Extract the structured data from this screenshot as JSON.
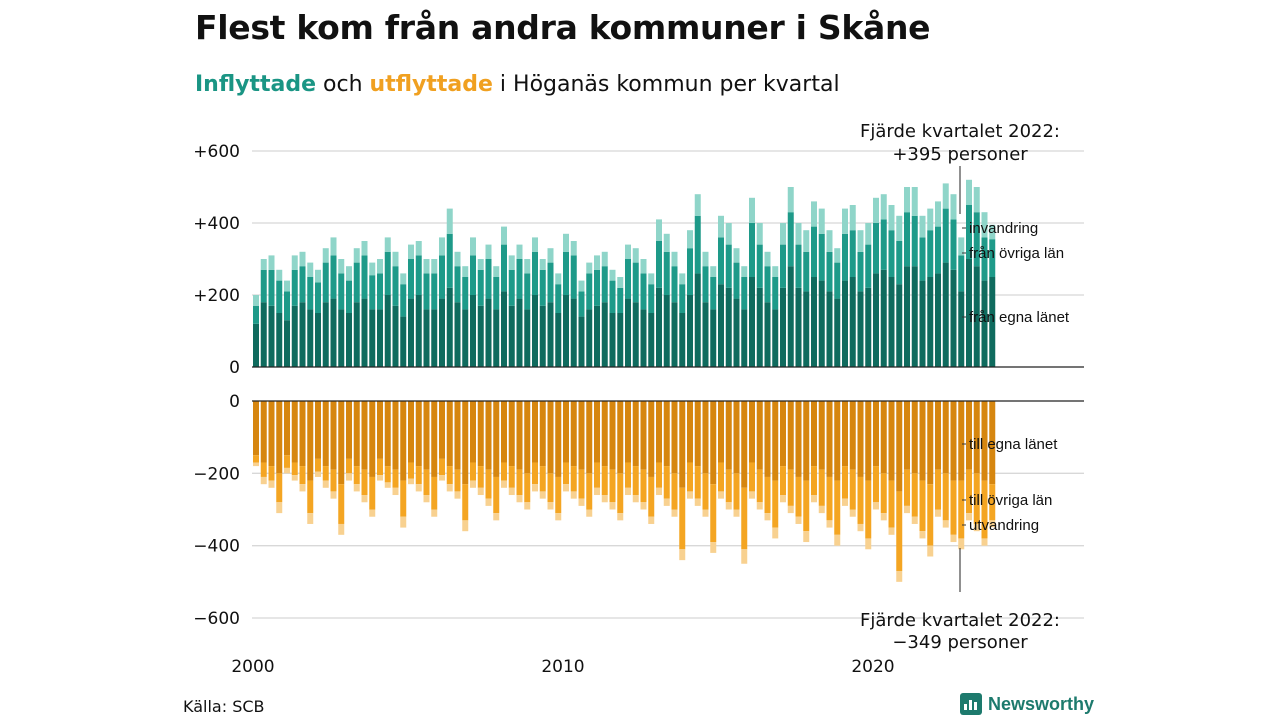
{
  "title": "Flest kom från andra kommuner i Skåne",
  "subtitle": {
    "inflow_word": "Inflyttade",
    "connector": " och ",
    "outflow_word": "utflyttade",
    "rest": " i Höganäs kommun per kvartal"
  },
  "source": "Källa: SCB",
  "brand": "Newsworthy",
  "colors": {
    "in_own": "#0f6b5e",
    "in_other": "#1e9a89",
    "in_imm": "#8fd5c9",
    "out_own": "#d6860f",
    "out_other": "#f4a522",
    "out_emi": "#f8d190",
    "grid": "#d8d8d8",
    "axis": "#222222"
  },
  "chart_data": {
    "type": "bar",
    "stacked": true,
    "x_tick_labels": [
      "2000",
      "2010",
      "2020"
    ],
    "top_panel": {
      "y_ticks": [
        0,
        200,
        400,
        600
      ],
      "y_tick_labels": [
        "0",
        "+200",
        "+400",
        "+600"
      ],
      "ylim": [
        0,
        600
      ],
      "series_labels": [
        "från egna länet",
        "från övriga län",
        "invandring"
      ],
      "annotation": [
        "Fjärde kvartalet 2022:",
        "+395 personer"
      ]
    },
    "bottom_panel": {
      "y_ticks": [
        0,
        -200,
        -400,
        -600
      ],
      "y_tick_labels": [
        "0",
        "−200",
        "−400",
        "−600"
      ],
      "ylim": [
        -600,
        0
      ],
      "series_labels": [
        "till egna länet",
        "till övriga län",
        "utvandring"
      ],
      "annotation": [
        "Fjärde kvartalet 2022:",
        "−349 personer"
      ]
    },
    "quarters_start": "2000 Q1",
    "quarters_end": "2022 Q4",
    "inflow_total": [
      200,
      300,
      310,
      270,
      240,
      310,
      320,
      290,
      270,
      330,
      360,
      300,
      280,
      330,
      350,
      290,
      300,
      360,
      320,
      260,
      340,
      350,
      300,
      300,
      360,
      440,
      320,
      280,
      360,
      300,
      340,
      280,
      390,
      310,
      340,
      300,
      360,
      300,
      330,
      260,
      370,
      350,
      240,
      290,
      310,
      320,
      270,
      250,
      340,
      330,
      300,
      260,
      410,
      370,
      320,
      260,
      380,
      480,
      320,
      280,
      420,
      400,
      330,
      280,
      470,
      400,
      320,
      280,
      400,
      500,
      400,
      380,
      460,
      440,
      380,
      330,
      440,
      450,
      380,
      400,
      470,
      480,
      450,
      420,
      500,
      500,
      420,
      440,
      460,
      510,
      480,
      360,
      520,
      500,
      430,
      395
    ],
    "inflow_own": [
      120,
      180,
      170,
      150,
      130,
      170,
      180,
      160,
      150,
      180,
      190,
      160,
      150,
      180,
      190,
      160,
      160,
      200,
      170,
      140,
      190,
      200,
      160,
      160,
      190,
      220,
      180,
      160,
      200,
      170,
      190,
      160,
      210,
      170,
      190,
      160,
      200,
      170,
      180,
      150,
      200,
      190,
      140,
      160,
      170,
      180,
      150,
      150,
      190,
      180,
      160,
      150,
      220,
      200,
      180,
      150,
      200,
      260,
      180,
      160,
      230,
      220,
      190,
      160,
      250,
      220,
      180,
      160,
      220,
      280,
      220,
      210,
      250,
      240,
      210,
      190,
      240,
      250,
      210,
      220,
      260,
      270,
      250,
      230,
      280,
      280,
      240,
      250,
      260,
      290,
      270,
      210,
      300,
      280,
      240,
      250
    ],
    "inflow_other": [
      50,
      90,
      100,
      90,
      80,
      100,
      100,
      90,
      85,
      110,
      120,
      100,
      90,
      110,
      120,
      95,
      100,
      120,
      110,
      90,
      110,
      110,
      100,
      100,
      120,
      150,
      100,
      90,
      110,
      100,
      110,
      90,
      130,
      100,
      110,
      100,
      120,
      100,
      110,
      80,
      120,
      120,
      70,
      100,
      100,
      100,
      90,
      70,
      110,
      110,
      100,
      80,
      130,
      120,
      100,
      80,
      130,
      160,
      100,
      90,
      130,
      120,
      100,
      90,
      150,
      120,
      100,
      90,
      120,
      150,
      120,
      110,
      140,
      130,
      110,
      100,
      130,
      130,
      110,
      120,
      140,
      140,
      130,
      120,
      150,
      140,
      120,
      130,
      130,
      150,
      140,
      100,
      150,
      150,
      120,
      105
    ],
    "outflow_total": [
      -180,
      -230,
      -240,
      -310,
      -200,
      -220,
      -250,
      -340,
      -210,
      -240,
      -270,
      -370,
      -220,
      -250,
      -280,
      -320,
      -220,
      -240,
      -260,
      -350,
      -230,
      -250,
      -280,
      -320,
      -220,
      -250,
      -270,
      -360,
      -240,
      -260,
      -290,
      -330,
      -240,
      -260,
      -280,
      -300,
      -250,
      -270,
      -300,
      -330,
      -250,
      -270,
      -290,
      -320,
      -260,
      -280,
      -300,
      -330,
      -260,
      -280,
      -300,
      -340,
      -260,
      -290,
      -320,
      -440,
      -270,
      -290,
      -320,
      -420,
      -270,
      -300,
      -320,
      -450,
      -270,
      -300,
      -330,
      -380,
      -280,
      -310,
      -340,
      -390,
      -280,
      -310,
      -350,
      -400,
      -290,
      -320,
      -360,
      -410,
      -300,
      -330,
      -370,
      -500,
      -310,
      -340,
      -380,
      -430,
      -320,
      -350,
      -390,
      -410,
      -330,
      -360,
      -400,
      -349
    ],
    "outflow_own": [
      -150,
      -170,
      -180,
      -200,
      -150,
      -170,
      -180,
      -220,
      -160,
      -180,
      -190,
      -230,
      -160,
      -180,
      -190,
      -210,
      -160,
      -180,
      -190,
      -220,
      -170,
      -180,
      -190,
      -210,
      -160,
      -180,
      -190,
      -230,
      -170,
      -180,
      -190,
      -210,
      -170,
      -180,
      -190,
      -200,
      -170,
      -180,
      -200,
      -210,
      -170,
      -180,
      -190,
      -200,
      -170,
      -180,
      -190,
      -200,
      -170,
      -180,
      -190,
      -210,
      -170,
      -180,
      -200,
      -240,
      -170,
      -180,
      -200,
      -230,
      -170,
      -190,
      -200,
      -240,
      -170,
      -190,
      -210,
      -220,
      -180,
      -190,
      -210,
      -220,
      -180,
      -190,
      -210,
      -220,
      -180,
      -190,
      -210,
      -220,
      -180,
      -200,
      -220,
      -250,
      -190,
      -200,
      -220,
      -230,
      -190,
      -200,
      -220,
      -220,
      -190,
      -200,
      -220,
      -230
    ],
    "outflow_other": [
      -20,
      -40,
      -40,
      -80,
      -35,
      -35,
      -50,
      -90,
      -35,
      -40,
      -60,
      -110,
      -40,
      -50,
      -70,
      -90,
      -45,
      -45,
      -50,
      -100,
      -45,
      -50,
      -70,
      -90,
      -45,
      -50,
      -60,
      -100,
      -50,
      -60,
      -80,
      -100,
      -50,
      -60,
      -70,
      -80,
      -60,
      -70,
      -80,
      -100,
      -60,
      -70,
      -80,
      -100,
      -70,
      -80,
      -90,
      -110,
      -70,
      -80,
      -90,
      -110,
      -70,
      -90,
      -100,
      -170,
      -80,
      -90,
      -100,
      -160,
      -80,
      -90,
      -100,
      -170,
      -80,
      -90,
      -100,
      -130,
      -80,
      -100,
      -110,
      -140,
      -80,
      -100,
      -120,
      -150,
      -90,
      -110,
      -130,
      -160,
      -100,
      -110,
      -130,
      -220,
      -100,
      -120,
      -140,
      -170,
      -110,
      -130,
      -150,
      -160,
      -120,
      -140,
      -160,
      -100
    ]
  }
}
